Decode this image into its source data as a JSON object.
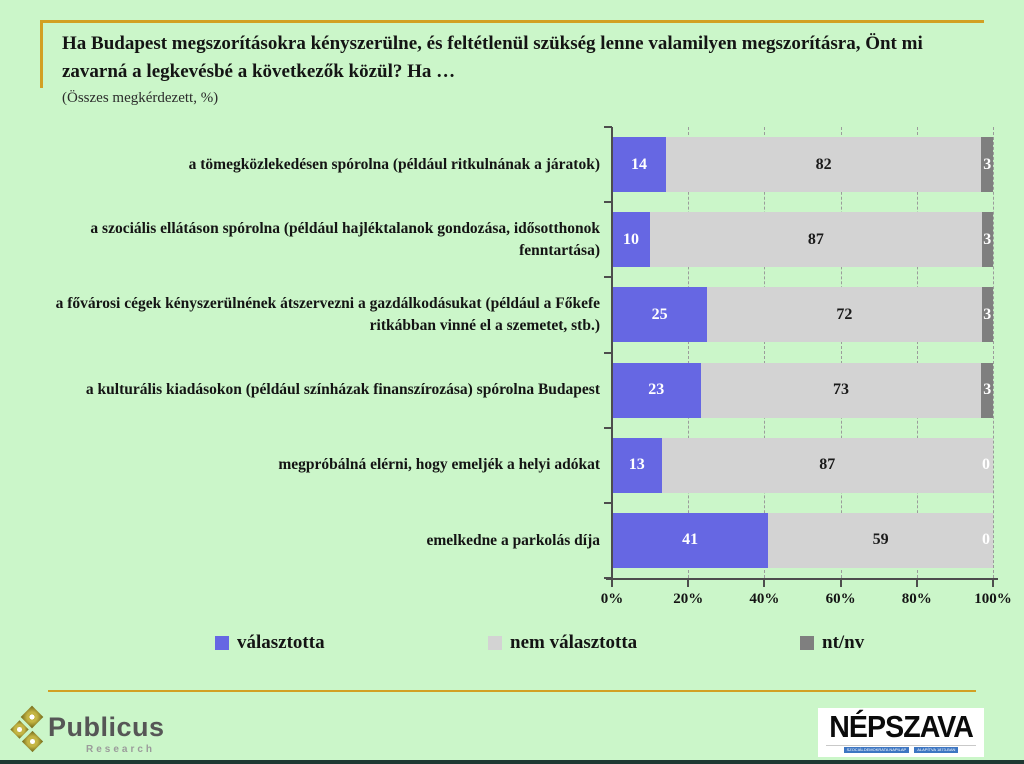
{
  "title": "Ha Budapest megszorításokra kényszerülne, és feltétlenül szükség lenne valamilyen megszorításra, Önt mi zavarná a legkevésbé a következők közül? Ha …",
  "subtitle": "(Összes megkérdezett, %)",
  "colors": {
    "background": "#CBF6C9",
    "accent_gold": "#D2A023",
    "bar_selected": "#6667E3",
    "bar_not_selected": "#D3D3D3",
    "bar_dontknow": "#7F7F7F",
    "axis": "#4d4d4d"
  },
  "chart_data": {
    "type": "bar",
    "orientation": "horizontal",
    "stacked": true,
    "title": "Ha Budapest megszorításokra kényszerülne, és feltétlenül szükség lenne valamilyen megszorításra, Önt mi zavarná a legkevésbé a következők közül? Ha …",
    "subtitle": "(Összes megkérdezett, %)",
    "categories": [
      "a tömegközlekedésen spórolna (például ritkulnának a járatok)",
      "a szociális ellátáson spórolna (például hajléktalanok gondozása, idősotthonok fenntartása)",
      "a fővárosi cégek kényszerülnének átszervezni a gazdálkodásukat (például a Főkefe ritkábban vinné el a szemetet, stb.)",
      "a kulturális kiadásokon (például színházak finanszírozása) spórolna Budapest",
      "megpróbálná elérni, hogy emeljék a helyi adókat",
      "emelkedne a parkolás díja"
    ],
    "series": [
      {
        "name": "választotta",
        "color": "#6667E3",
        "label_color": "#ffffff",
        "values": [
          14,
          10,
          25,
          23,
          13,
          41
        ]
      },
      {
        "name": "nem választotta",
        "color": "#D3D3D3",
        "label_color": "#1a1a1a",
        "values": [
          82,
          87,
          72,
          73,
          87,
          59
        ]
      },
      {
        "name": "nt/nv",
        "color": "#7F7F7F",
        "label_color": "#ffffff",
        "values": [
          3,
          3,
          3,
          3,
          0,
          0
        ]
      }
    ],
    "x_ticks": [
      "0%",
      "20%",
      "40%",
      "60%",
      "80%",
      "100%"
    ],
    "xlim": [
      0,
      100
    ],
    "grid": "dashed-vertical",
    "legend_position": "bottom"
  },
  "legend": {
    "items": [
      {
        "label": "választotta",
        "color": "#6667E3"
      },
      {
        "label": "nem választotta",
        "color": "#D3D3D3"
      },
      {
        "label": "nt/nv",
        "color": "#7F7F7F"
      }
    ]
  },
  "footer": {
    "publicus_name": "Publicus",
    "publicus_sub": "Research",
    "nepszava_name": "NÉPSZAVA",
    "nepszava_sub1": "SZOCIÁLDEMOKRATA NAPILAP",
    "nepszava_sub2": "ALAPÍTVA 1873-BAN"
  }
}
